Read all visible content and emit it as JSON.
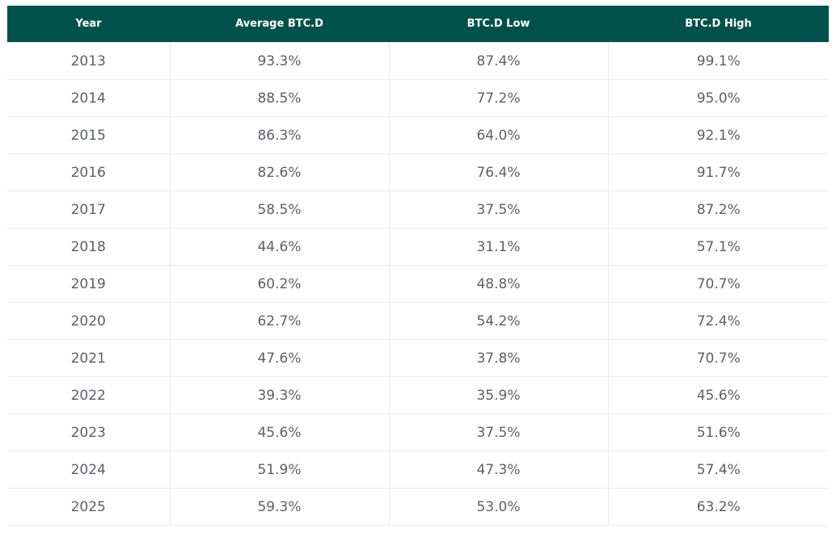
{
  "table": {
    "header": [
      "Year",
      "Average BTC.D",
      "BTC.D Low",
      "BTC.D High"
    ],
    "rows": [
      [
        "2013",
        "93.3%",
        "87.4%",
        "99.1%"
      ],
      [
        "2014",
        "88.5%",
        "77.2%",
        "95.0%"
      ],
      [
        "2015",
        "86.3%",
        "64.0%",
        "92.1%"
      ],
      [
        "2016",
        "82.6%",
        "76.4%",
        "91.7%"
      ],
      [
        "2017",
        "58.5%",
        "37.5%",
        "87.2%"
      ],
      [
        "2018",
        "44.6%",
        "31.1%",
        "57.1%"
      ],
      [
        "2019",
        "60.2%",
        "48.8%",
        "70.7%"
      ],
      [
        "2020",
        "62.7%",
        "54.2%",
        "72.4%"
      ],
      [
        "2021",
        "47.6%",
        "37.8%",
        "70.7%"
      ],
      [
        "2022",
        "39.3%",
        "35.9%",
        "45.6%"
      ],
      [
        "2023",
        "45.6%",
        "37.5%",
        "51.6%"
      ],
      [
        "2024",
        "51.9%",
        "47.3%",
        "57.4%"
      ],
      [
        "2025",
        "59.3%",
        "53.0%",
        "63.2%"
      ]
    ]
  }
}
